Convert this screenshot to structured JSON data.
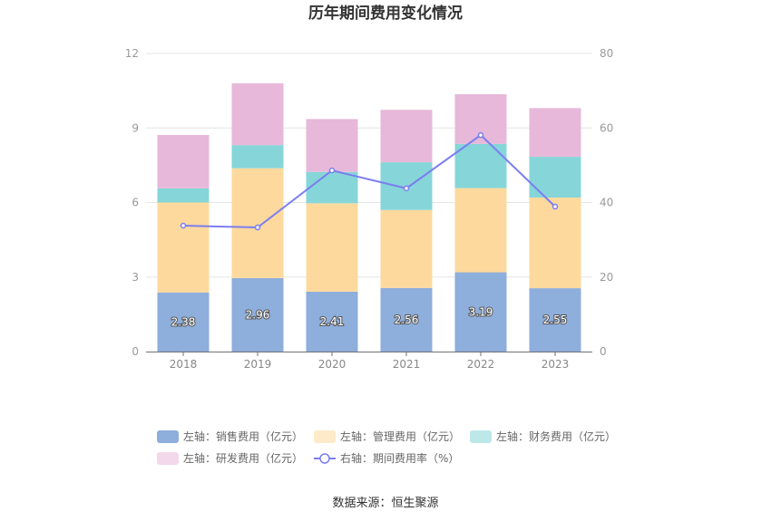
{
  "chart_data": {
    "type": "bar",
    "title": "历年期间费用变化情况",
    "categories": [
      "2018",
      "2019",
      "2020",
      "2021",
      "2022",
      "2023"
    ],
    "stacked": true,
    "left_axis": {
      "ylim": [
        0,
        12
      ],
      "ticks": [
        "0",
        "3",
        "6",
        "9",
        "12"
      ]
    },
    "right_axis": {
      "ylim": [
        0,
        80
      ],
      "ticks": [
        "0",
        "20",
        "40",
        "60",
        "80"
      ]
    },
    "series": [
      {
        "name": "左轴：销售费用（亿元）",
        "axis": "left",
        "kind": "bar",
        "color": "#8eaedb",
        "values": [
          2.38,
          2.96,
          2.41,
          2.56,
          3.19,
          2.55
        ],
        "labels": [
          "2.38",
          "2.96",
          "2.41",
          "2.56",
          "3.19",
          "2.55"
        ]
      },
      {
        "name": "左轴：管理费用（亿元）",
        "axis": "left",
        "kind": "bar",
        "color": "#fdd99d",
        "values": [
          3.62,
          4.42,
          3.56,
          3.14,
          3.39,
          3.65
        ]
      },
      {
        "name": "左轴：财务费用（亿元）",
        "axis": "left",
        "kind": "bar",
        "color": "#86d5d9",
        "values": [
          0.57,
          0.93,
          1.26,
          1.92,
          1.78,
          1.64
        ]
      },
      {
        "name": "左轴：研发费用（亿元）",
        "axis": "left",
        "kind": "bar",
        "color": "#e7b8d9",
        "values": [
          2.15,
          2.49,
          2.13,
          2.11,
          2.0,
          1.96
        ]
      },
      {
        "name": "右轴：期间费用率（%）",
        "axis": "right",
        "kind": "line",
        "color": "#7b7ef0",
        "values": [
          33.8,
          33.3,
          48.6,
          43.8,
          58.1,
          38.9
        ]
      }
    ],
    "legend_position": "bottom"
  },
  "source_text": "数据来源：恒生聚源"
}
